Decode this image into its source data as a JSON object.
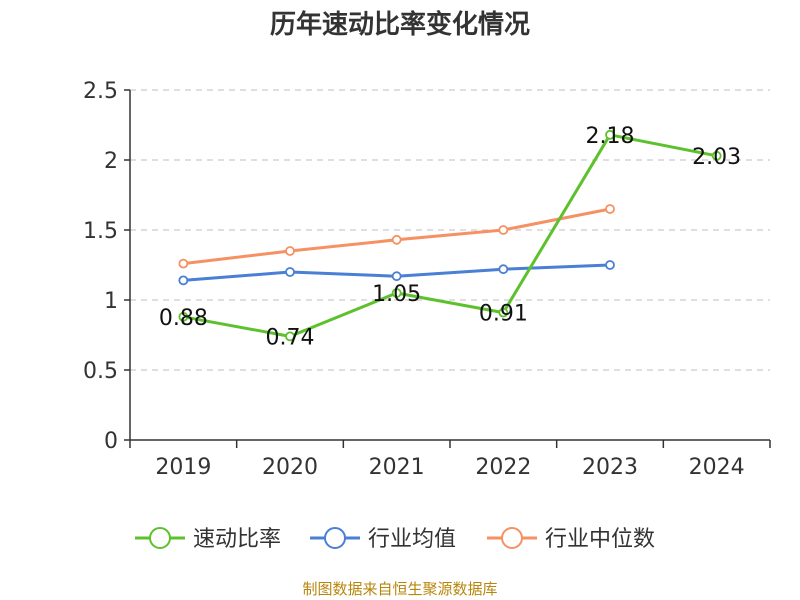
{
  "chart_data": {
    "type": "line",
    "title": "历年速动比率变化情况",
    "categories": [
      "2019",
      "2020",
      "2021",
      "2022",
      "2023",
      "2024"
    ],
    "ylim": [
      0,
      2.5
    ],
    "yticks": [
      "0",
      "0.5",
      "1",
      "1.5",
      "2",
      "2.5"
    ],
    "series": [
      {
        "name": "速动比率",
        "color": "#5cc12c",
        "values": [
          0.88,
          0.74,
          1.05,
          0.91,
          2.18,
          2.03
        ],
        "labels": [
          "0.88",
          "0.74",
          "1.05",
          "0.91",
          "2.18",
          "2.03"
        ]
      },
      {
        "name": "行业均值",
        "color": "#4a7fd6",
        "values": [
          1.14,
          1.2,
          1.17,
          1.22,
          1.25,
          null
        ]
      },
      {
        "name": "行业中位数",
        "color": "#f59162",
        "values": [
          1.26,
          1.35,
          1.43,
          1.5,
          1.65,
          null
        ]
      }
    ],
    "grid": true,
    "legend": "bottom"
  },
  "source_text": "制图数据来自恒生聚源数据库"
}
